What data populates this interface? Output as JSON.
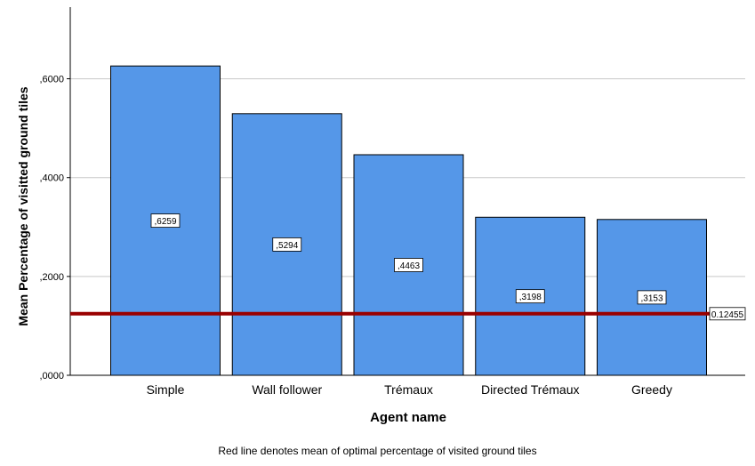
{
  "chart_data": {
    "type": "bar",
    "categories": [
      "Simple",
      "Wall follower",
      "Trémaux",
      "Directed Trémaux",
      "Greedy"
    ],
    "values": [
      0.6259,
      0.5294,
      0.4463,
      0.3198,
      0.3153
    ],
    "data_labels": [
      ",6259",
      ",5294",
      ",4463",
      ",3198",
      ",3153"
    ],
    "xlabel": "Agent name",
    "ylabel": "Mean Percentage of visitted ground tiles",
    "yticks": [
      {
        "value": 0,
        "label": ",0000"
      },
      {
        "value": 0.2,
        "label": ",2000"
      },
      {
        "value": 0.4,
        "label": ",4000"
      },
      {
        "value": 0.6,
        "label": ",6000"
      }
    ],
    "ylim": [
      0,
      0.745
    ],
    "grid": true,
    "bar_color": "#5597e8",
    "reference_line": {
      "value": 0.12455,
      "label": "0.12455",
      "color": "#990000"
    },
    "note": "Red line denotes mean of optimal percentage of visited ground tiles"
  }
}
